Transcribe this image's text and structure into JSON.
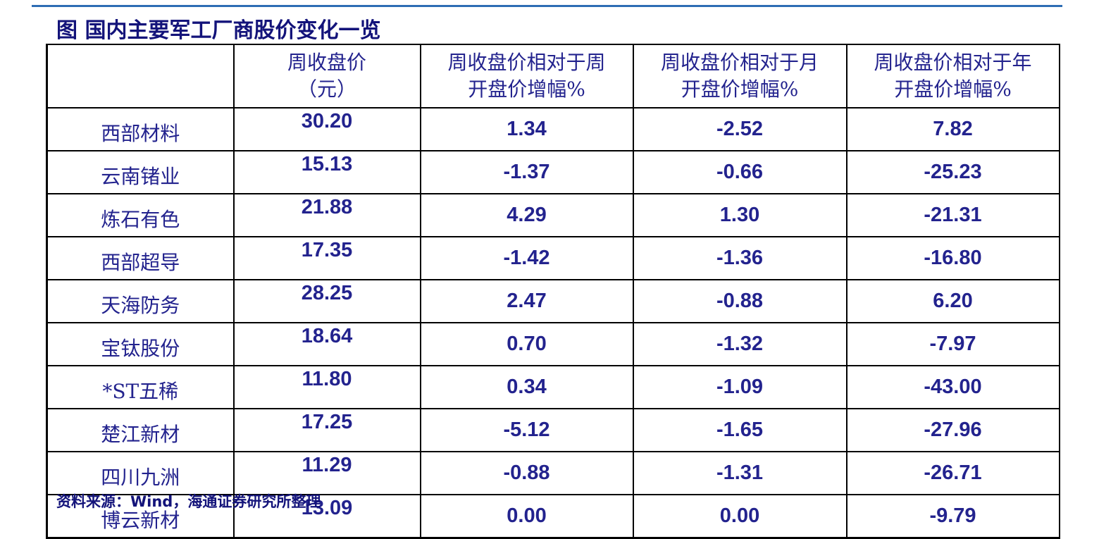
{
  "title": "图  国内主要军工厂商股价变化一览",
  "table": {
    "headers": [
      [
        "周收盘价",
        "（元）"
      ],
      [
        "周收盘价相对于周",
        "开盘价增幅%"
      ],
      [
        "周收盘价相对于月",
        "开盘价增幅%"
      ],
      [
        "周收盘价相对于年",
        "开盘价增幅%"
      ]
    ],
    "rows": [
      [
        "西部材料",
        "30.20",
        "1.34",
        "-2.52",
        "7.82"
      ],
      [
        "云南锗业",
        "15.13",
        "-1.37",
        "-0.66",
        "-25.23"
      ],
      [
        "炼石有色",
        "21.88",
        "4.29",
        "1.30",
        "-21.31"
      ],
      [
        "西部超导",
        "17.35",
        "-1.42",
        "-1.36",
        "-16.80"
      ],
      [
        "天海防务",
        "28.25",
        "2.47",
        "-0.88",
        "6.20"
      ],
      [
        "宝钛股份",
        "18.64",
        "0.70",
        "-1.32",
        "-7.97"
      ],
      [
        "*ST五稀",
        "11.80",
        "0.34",
        "-1.09",
        "-43.00"
      ],
      [
        "楚江新材",
        "17.25",
        "-5.12",
        "-1.65",
        "-27.96"
      ],
      [
        "四川九洲",
        "11.29",
        "-0.88",
        "-1.31",
        "-26.71"
      ],
      [
        "博云新材",
        "13.09",
        "0.00",
        "0.00",
        "-9.79"
      ]
    ]
  },
  "source": "资料来源：Wind，海通证券研究所整理"
}
